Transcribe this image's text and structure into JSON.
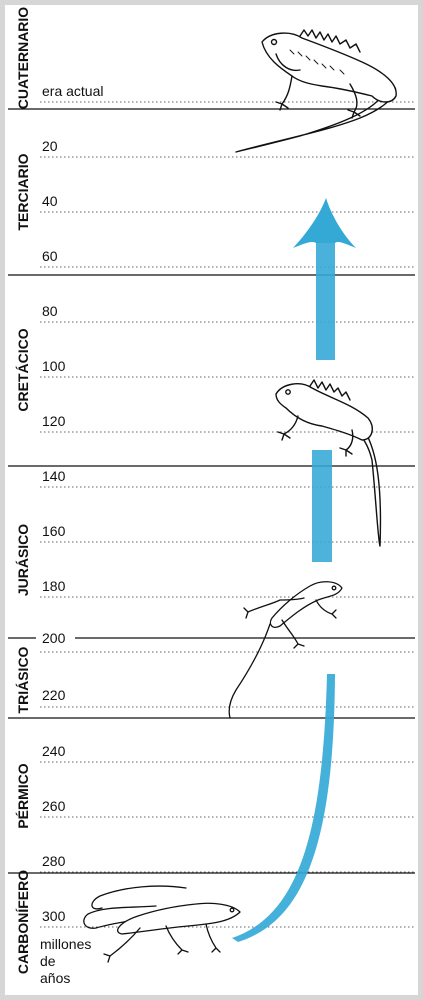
{
  "top_label": "era actual",
  "unit_label": [
    "millones",
    "de",
    "años"
  ],
  "eras": [
    {
      "name": "CUATERNARIO",
      "start": 0,
      "end": 0
    },
    {
      "name": "TERCIARIO",
      "start": 0,
      "end": 65
    },
    {
      "name": "CRETÁCICO",
      "start": 65,
      "end": 135
    },
    {
      "name": "JURÁSICO",
      "start": 135,
      "end": 195
    },
    {
      "name": "TRIÁSICO",
      "start": 195,
      "end": 225
    },
    {
      "name": "PÉRMICO",
      "start": 225,
      "end": 280
    },
    {
      "name": "CARBONÍFERO",
      "start": 280,
      "end": 310
    }
  ],
  "ticks": [
    "20",
    "40",
    "60",
    "80",
    "100",
    "120",
    "140",
    "160",
    "180",
    "200",
    "220",
    "240",
    "260",
    "280",
    "300"
  ],
  "colors": {
    "arrow": "#35a9d6",
    "line": "#111111",
    "frame": "#d6d6d6"
  },
  "icons": [
    "iguana-icon",
    "iguana-icon",
    "lizard-icon",
    "lizard-icon"
  ]
}
